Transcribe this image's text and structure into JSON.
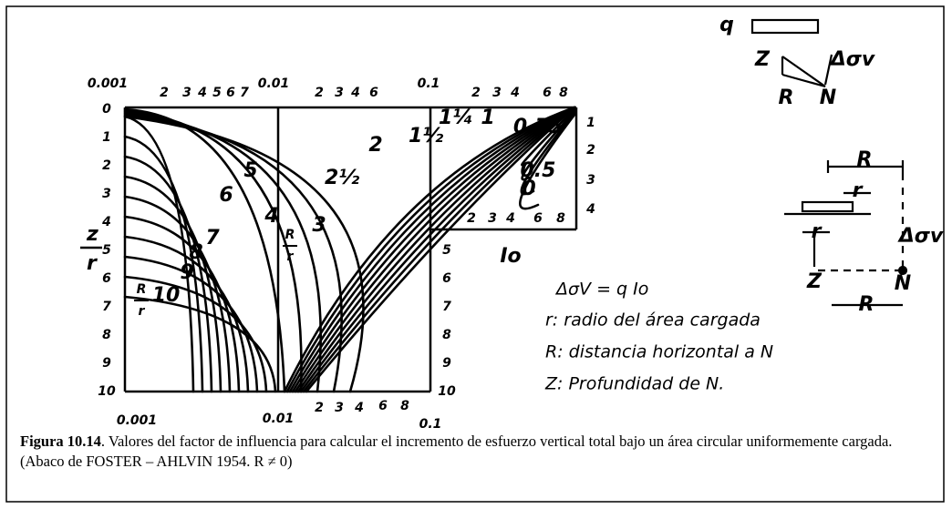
{
  "figure": {
    "top_axis_labels": [
      "0.001",
      "2",
      "3",
      "4",
      "5",
      "6",
      "7",
      "0.01",
      "2",
      "3",
      "4",
      "6",
      "0.1",
      "2",
      "3",
      "4",
      "6",
      "8"
    ],
    "left_axis_labels": [
      "0",
      "1",
      "2",
      "3",
      "4",
      "5",
      "6",
      "7",
      "8",
      "9",
      "10"
    ],
    "right_axis_labels": [
      "5",
      "6",
      "7",
      "8",
      "9",
      "10"
    ],
    "inset_right_labels": [
      "1",
      "2",
      "3",
      "4"
    ],
    "inset_bottom_labels": [
      "2",
      "3",
      "4",
      "6",
      "8"
    ],
    "bottom_axis_labels": [
      "0.001",
      "0.01",
      "2",
      "3",
      "4",
      "6",
      "8",
      "0.1"
    ],
    "y_axis_title": {
      "numerator": "z",
      "denominator": "r"
    },
    "curve_param": {
      "numerator": "R",
      "denominator": "r"
    },
    "curve_labels": [
      "10",
      "9",
      "8",
      "7",
      "6",
      "5",
      "4",
      "3",
      "2½",
      "2",
      "1½",
      "1¼",
      "1",
      "0.75",
      "0.5",
      "0"
    ],
    "inset_axis_title": "Io"
  },
  "notes": [
    "ΔσV = q Io",
    "r: radio del área cargada",
    "R: distancia horizontal a N",
    "Z: Profundidad de N."
  ],
  "sketch": {
    "load": "q",
    "depth": "Z",
    "distance": "R",
    "point": "N",
    "stress": "Δσv",
    "radius": "r",
    "distance_lower": "R",
    "radius_lower": "r",
    "depth_lower": "Z",
    "point_lower": "N",
    "distance_bottom": "R",
    "stress_lower": "Δσv"
  },
  "caption": {
    "label": "Figura 10.14",
    "text": ". Valores del factor de influencia para calcular el incremento de esfuerzo vertical total bajo un área circular uniformemente cargada. (Abaco de FOSTER – AHLVIN 1954. R ≠ 0)"
  }
}
